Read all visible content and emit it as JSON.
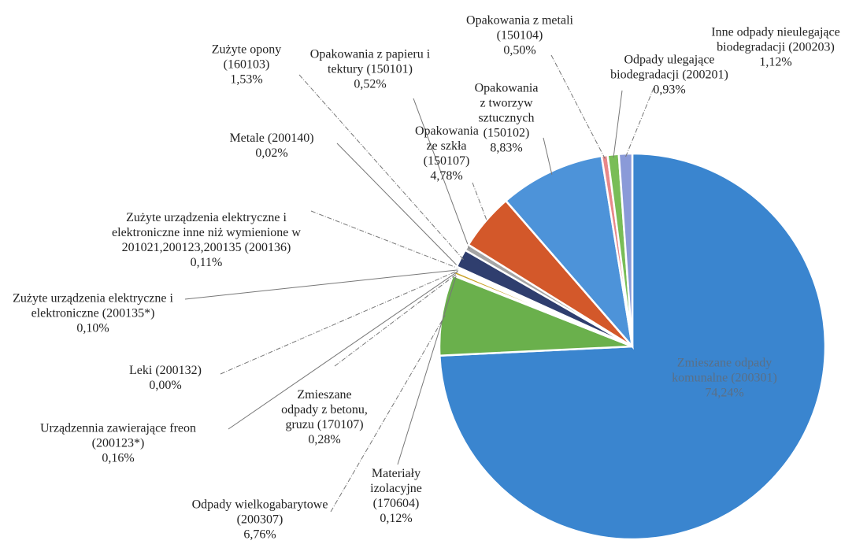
{
  "chart_data": {
    "type": "pie",
    "categories": [
      "Zmieszane odpady komunalne (200301)",
      "Odpady wielkogabarytowe (200307)",
      "Materiały izolacyjne (170604)",
      "Zmieszane odpady z betonu, gruzu (170107)",
      "Urządzennia zawierające freon (200123*)",
      "Leki (200132)",
      "Zużyte urządzenia elektryczne i elektroniczne (200135*)",
      "Zużyte urządzenia elektryczne i elektroniczne inne niż wymienione w 201021,200123,200135 (200136)",
      "Metale (200140)",
      "Zużyte opony (160103)",
      "Opakowania z papieru i tektury (150101)",
      "Opakowania ze szkła (150107)",
      "Opakowania z tworzyw sztucznych (150102)",
      "Opakowania z metali (150104)",
      "Odpady ulegające biodegradacji (200201)",
      "Inne odpady nieulegające biodegradacji (200203)"
    ],
    "values": [
      74.24,
      6.76,
      0.12,
      0.28,
      0.16,
      0.0,
      0.1,
      0.11,
      0.02,
      1.53,
      0.52,
      4.78,
      8.83,
      0.5,
      0.93,
      1.12
    ],
    "value_labels": [
      "74,24%",
      "6,76%",
      "0,12%",
      "0,28%",
      "0,16%",
      "0,00%",
      "0,10%",
      "0,11%",
      "0,02%",
      "1,53%",
      "0,52%",
      "4,78%",
      "8,83%",
      "0,50%",
      "0,93%",
      "1,12%"
    ],
    "colors": [
      "#3a85cf",
      "#6ab04c",
      "#8e8e8e",
      "#c9a227",
      "#5a6fb5",
      "#9c4f96",
      "#3f9e8c",
      "#b0b0b0",
      "#e0a040",
      "#2f3e6e",
      "#a5a5a5",
      "#d3582a",
      "#4d93d9",
      "#e8888a",
      "#79bd57",
      "#8a9ad8"
    ]
  }
}
